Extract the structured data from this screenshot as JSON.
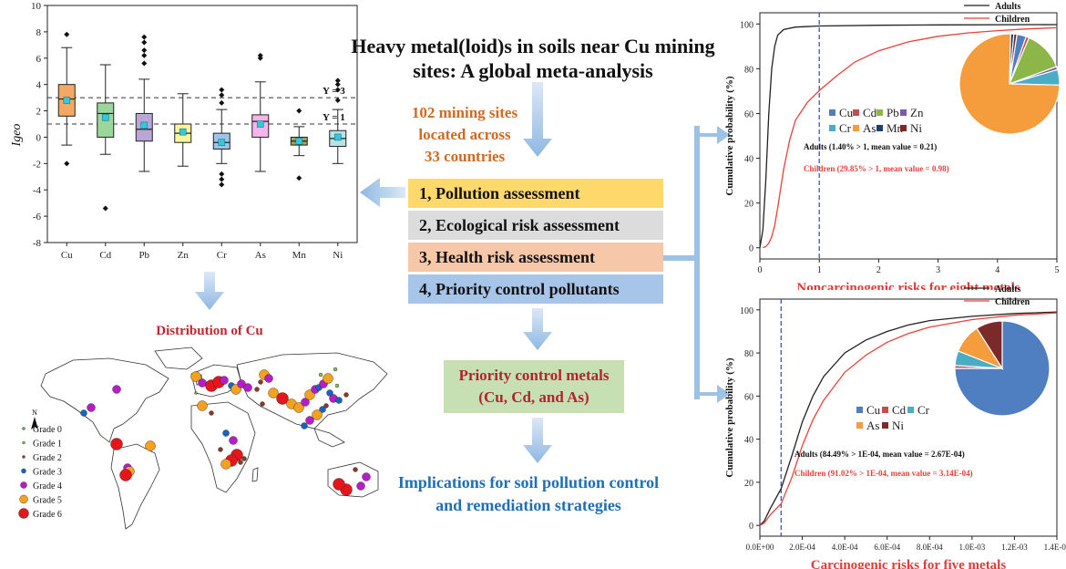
{
  "title_lines": [
    "Heavy metal(loid)s in soils near Cu mining",
    "sites: A global meta-analysis"
  ],
  "sites_lines": [
    "102 mining sites",
    "located across",
    "33 countries"
  ],
  "steps": [
    "1, Pollution assessment",
    "2, Ecological risk assessment",
    "3, Health risk assessment",
    "4, Priority control pollutants"
  ],
  "priority_lines": [
    "Priority control metals",
    "(Cu, Cd, and As)"
  ],
  "implications_lines": [
    "Implications for soil pollution control",
    "and remediation strategies"
  ],
  "map": {
    "title": "Distribution of Cu",
    "north": "N",
    "grades": [
      {
        "label": "Grade 0",
        "color": "#6aa84f",
        "r": 1.5
      },
      {
        "label": "Grade 1",
        "color": "#8bc34a",
        "r": 2
      },
      {
        "label": "Grade 2",
        "color": "#8b3a2a",
        "r": 2.5
      },
      {
        "label": "Grade 3",
        "color": "#1565c0",
        "r": 3.5
      },
      {
        "label": "Grade 4",
        "color": "#b71cc9",
        "r": 4.5
      },
      {
        "label": "Grade 5",
        "color": "#f4a11d",
        "r": 5.5
      },
      {
        "label": "Grade 6",
        "color": "#e8141b",
        "r": 6.5
      }
    ]
  },
  "chart_data": [
    {
      "type": "box",
      "ylabel": "Igeo",
      "ylim": [
        -8,
        10
      ],
      "yticks": [
        "-8",
        "-6",
        "-4",
        "-2",
        "0",
        "2",
        "4",
        "6",
        "8",
        "10"
      ],
      "reference_lines": [
        {
          "label": "Y = 3",
          "value": 3
        },
        {
          "label": "Y = 1",
          "value": 1
        }
      ],
      "categories": [
        "Cu",
        "Cd",
        "Pb",
        "Zn",
        "Cr",
        "As",
        "Mn",
        "Ni"
      ],
      "colors": [
        "#f5a764",
        "#9bd69b",
        "#b7a6d6",
        "#fff59d",
        "#9fc4ea",
        "#f6b4e8",
        "#9aa85c",
        "#b8e2e8"
      ],
      "boxes": [
        {
          "min": -0.6,
          "q1": 1.6,
          "median": 2.9,
          "q3": 4.0,
          "max": 6.8,
          "mean": 2.8,
          "outliers": [
            7.8,
            -2.0
          ]
        },
        {
          "min": -1.3,
          "q1": 0.0,
          "median": 1.8,
          "q3": 2.6,
          "max": 5.5,
          "mean": 1.5,
          "outliers": [
            -5.4
          ]
        },
        {
          "min": -2.6,
          "q1": -0.3,
          "median": 0.6,
          "q3": 1.8,
          "max": 4.4,
          "mean": 0.9,
          "outliers": [
            7.6,
            7.2,
            6.6,
            6.2,
            5.6
          ]
        },
        {
          "min": -2.2,
          "q1": -0.4,
          "median": 0.3,
          "q3": 1.0,
          "max": 3.3,
          "mean": 0.4,
          "outliers": []
        },
        {
          "min": -2.0,
          "q1": -0.9,
          "median": -0.4,
          "q3": 0.3,
          "max": 2.1,
          "mean": -0.4,
          "outliers": [
            3.6,
            3.2,
            2.6,
            -2.8,
            -3.2,
            -3.6
          ]
        },
        {
          "min": -2.6,
          "q1": 0.0,
          "median": 1.2,
          "q3": 1.7,
          "max": 4.2,
          "mean": 1.0,
          "outliers": [
            6.2,
            6.0
          ]
        },
        {
          "min": -1.4,
          "q1": -0.6,
          "median": -0.3,
          "q3": 0.0,
          "max": 0.8,
          "mean": -0.3,
          "outliers": [
            2.0,
            -3.1
          ]
        },
        {
          "min": -2.0,
          "q1": -0.7,
          "median": -0.1,
          "q3": 0.5,
          "max": 2.1,
          "mean": 0.0,
          "outliers": [
            4.3,
            4.0,
            3.6,
            2.8
          ]
        }
      ]
    },
    {
      "type": "line",
      "title": "Noncarcinogenic risks for eight metals",
      "ylabel": "Cumulative probability (%)",
      "xlim": [
        0,
        5
      ],
      "ylim": [
        -5,
        105
      ],
      "xticks": [
        "0",
        "1",
        "2",
        "3",
        "4",
        "5"
      ],
      "yticks": [
        "0",
        "20",
        "40",
        "60",
        "80",
        "100"
      ],
      "threshold": 1,
      "series": [
        {
          "name": "Adults",
          "color": "#222222",
          "points": [
            [
              0,
              0
            ],
            [
              0.05,
              8
            ],
            [
              0.1,
              30
            ],
            [
              0.15,
              60
            ],
            [
              0.2,
              80
            ],
            [
              0.25,
              90
            ],
            [
              0.3,
              95
            ],
            [
              0.4,
              97.5
            ],
            [
              0.6,
              98.6
            ],
            [
              1,
              99.1
            ],
            [
              2,
              99.4
            ],
            [
              3,
              99.6
            ],
            [
              5,
              99.7
            ]
          ]
        },
        {
          "name": "Children",
          "color": "#e8413b",
          "points": [
            [
              0.05,
              0
            ],
            [
              0.1,
              0.5
            ],
            [
              0.15,
              2
            ],
            [
              0.2,
              5
            ],
            [
              0.25,
              10
            ],
            [
              0.3,
              18
            ],
            [
              0.4,
              35
            ],
            [
              0.5,
              48
            ],
            [
              0.6,
              57
            ],
            [
              0.8,
              65
            ],
            [
              1,
              70.2
            ],
            [
              1.3,
              77
            ],
            [
              1.6,
              83
            ],
            [
              2,
              88
            ],
            [
              2.5,
              92
            ],
            [
              3,
              94.5
            ],
            [
              3.5,
              96
            ],
            [
              4,
              97
            ],
            [
              4.5,
              97.8
            ],
            [
              5,
              98.3
            ]
          ]
        }
      ],
      "notes": [
        {
          "text": "Adults (1.40% > 1, mean value = 0.21)",
          "color": "#111111"
        },
        {
          "text": "Children (29.85% > 1, mean value = 0.98)",
          "color": "#e8413b"
        }
      ],
      "pie": {
        "slices": [
          {
            "label": "Cu",
            "value": 3,
            "color": "#4f7fc0"
          },
          {
            "label": "Cd",
            "value": 1,
            "color": "#c0504d"
          },
          {
            "label": "Pb",
            "value": 13,
            "color": "#8db649"
          },
          {
            "label": "Zn",
            "value": 1,
            "color": "#7b5aa6"
          },
          {
            "label": "Cr",
            "value": 5,
            "color": "#4bacc6"
          },
          {
            "label": "As",
            "value": 75,
            "color": "#f59c3c"
          },
          {
            "label": "Mn",
            "value": 1,
            "color": "#1f3f73"
          },
          {
            "label": "Ni",
            "value": 1,
            "color": "#7b2a2a"
          }
        ]
      }
    },
    {
      "type": "line",
      "title": "Carcinogenic risks for five metals",
      "ylabel": "Cumulative probability (%)",
      "xlim": [
        0,
        0.0014
      ],
      "ylim": [
        -5,
        105
      ],
      "xticks": [
        "0.0E+00",
        "2.0E-04",
        "4.0E-04",
        "6.0E-04",
        "8.0E-04",
        "1.0E-03",
        "1.2E-03",
        "1.4E-03"
      ],
      "yticks": [
        "0",
        "20",
        "40",
        "60",
        "80",
        "100"
      ],
      "threshold": 0.0001,
      "series": [
        {
          "name": "Adults",
          "color": "#222222",
          "points": [
            [
              0,
              0
            ],
            [
              2e-05,
              2
            ],
            [
              5e-05,
              8
            ],
            [
              0.0001,
              17
            ],
            [
              0.00015,
              32
            ],
            [
              0.0002,
              48
            ],
            [
              0.00025,
              60
            ],
            [
              0.0003,
              69
            ],
            [
              0.0004,
              80
            ],
            [
              0.0005,
              86
            ],
            [
              0.0006,
              90
            ],
            [
              0.0007,
              93
            ],
            [
              0.0008,
              95
            ],
            [
              0.001,
              97
            ],
            [
              0.0012,
              98.3
            ],
            [
              0.0014,
              99
            ]
          ]
        },
        {
          "name": "Children",
          "color": "#e8413b",
          "points": [
            [
              0,
              0
            ],
            [
              2e-05,
              1
            ],
            [
              5e-05,
              5
            ],
            [
              0.0001,
              10
            ],
            [
              0.00015,
              22
            ],
            [
              0.0002,
              37
            ],
            [
              0.00025,
              49
            ],
            [
              0.0003,
              58
            ],
            [
              0.0004,
              71
            ],
            [
              0.0005,
              79
            ],
            [
              0.0006,
              85
            ],
            [
              0.0007,
              89
            ],
            [
              0.0008,
              92
            ],
            [
              0.001,
              95.5
            ],
            [
              0.0012,
              97.5
            ],
            [
              0.0014,
              98.6
            ]
          ]
        }
      ],
      "notes": [
        {
          "text": "Adults (84.49% > 1E-04, mean value = 2.67E-04)",
          "color": "#111111"
        },
        {
          "text": "Children (91.02% > 1E-04, mean value = 3.14E-04)",
          "color": "#e8413b"
        }
      ],
      "pie": {
        "slices": [
          {
            "label": "Cu",
            "value": 75,
            "color": "#4f7fc0"
          },
          {
            "label": "Cd",
            "value": 1,
            "color": "#c0504d"
          },
          {
            "label": "Cr",
            "value": 5,
            "color": "#4bacc6"
          },
          {
            "label": "As",
            "value": 10,
            "color": "#f59c3c"
          },
          {
            "label": "Ni",
            "value": 9,
            "color": "#7b2a2a"
          }
        ]
      }
    }
  ]
}
